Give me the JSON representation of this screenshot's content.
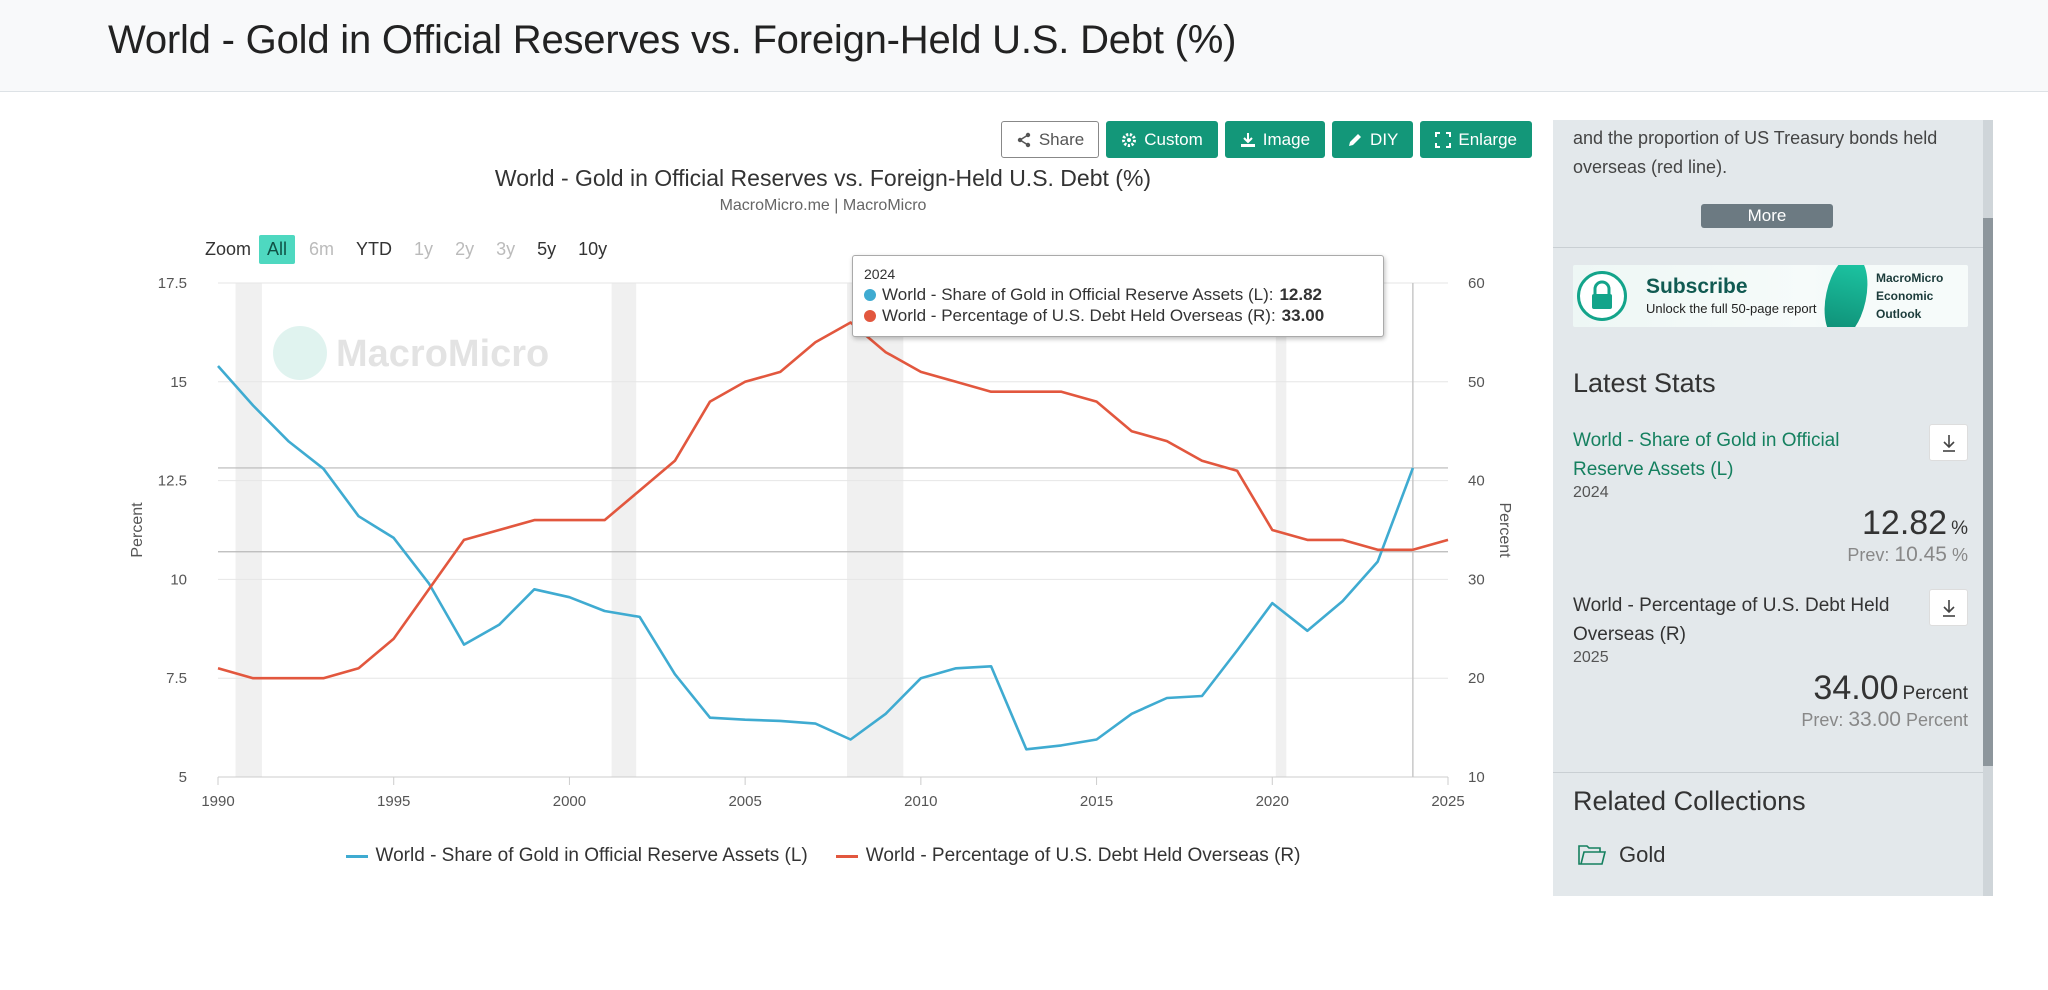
{
  "page": {
    "title": "World - Gold in Official Reserves vs. Foreign-Held U.S. Debt (%)"
  },
  "toolbar": {
    "share": "Share",
    "custom": "Custom",
    "image": "Image",
    "diy": "DIY",
    "enlarge": "Enlarge"
  },
  "zoom": {
    "label": "Zoom",
    "options": [
      "All",
      "6m",
      "YTD",
      "1y",
      "2y",
      "3y",
      "5y",
      "10y"
    ],
    "selected": "All"
  },
  "colors": {
    "gold_series": "#3fabd1",
    "debt_series": "#e2573e",
    "accent": "#139779",
    "recession_band": "#f0f0f0"
  },
  "chart_data": {
    "type": "line",
    "title": "World - Gold in Official Reserves vs. Foreign-Held U.S. Debt (%)",
    "subtitle": "MacroMicro.me | MacroMicro",
    "watermark": "MacroMicro",
    "x_ticks": [
      "1990",
      "1995",
      "2000",
      "2005",
      "2010",
      "2015",
      "2020",
      "2025"
    ],
    "y_left": {
      "label": "Percent",
      "min": 5,
      "max": 17.5,
      "ticks": [
        "5",
        "7.5",
        "10",
        "12.5",
        "15",
        "17.5"
      ]
    },
    "y_right": {
      "label": "Percent",
      "min": 10,
      "max": 60,
      "ticks": [
        "10",
        "20",
        "30",
        "40",
        "50",
        "60"
      ]
    },
    "recession_bands": [
      [
        1990.5,
        1991.25
      ],
      [
        2001.2,
        2001.9
      ],
      [
        2007.9,
        2009.5
      ],
      [
        2020.1,
        2020.4
      ]
    ],
    "reference_lines_left": [
      12.82,
      10.7
    ],
    "crosshair_year": 2024,
    "series": [
      {
        "name": "World - Share of Gold in Official Reserve Assets (L)",
        "axis": "left",
        "x": [
          1990,
          1991,
          1992,
          1993,
          1994,
          1995,
          1996,
          1997,
          1998,
          1999,
          2000,
          2001,
          2002,
          2003,
          2004,
          2005,
          2006,
          2007,
          2008,
          2009,
          2010,
          2011,
          2012,
          2013,
          2014,
          2015,
          2016,
          2017,
          2018,
          2019,
          2020,
          2021,
          2022,
          2023,
          2024
        ],
        "values": [
          15.4,
          14.4,
          13.5,
          12.8,
          11.6,
          11.05,
          9.9,
          8.35,
          8.85,
          9.75,
          9.55,
          9.2,
          9.05,
          7.6,
          6.5,
          6.45,
          6.42,
          6.35,
          5.95,
          6.6,
          7.5,
          7.75,
          7.8,
          5.7,
          5.8,
          5.95,
          6.6,
          7.0,
          7.05,
          8.2,
          9.4,
          8.7,
          9.45,
          10.45,
          12.82
        ]
      },
      {
        "name": "World - Percentage of U.S. Debt Held Overseas (R)",
        "axis": "right",
        "x": [
          1990,
          1991,
          1992,
          1993,
          1994,
          1995,
          1996,
          1997,
          1998,
          1999,
          2000,
          2001,
          2002,
          2003,
          2004,
          2005,
          2006,
          2007,
          2008,
          2009,
          2010,
          2011,
          2012,
          2013,
          2014,
          2015,
          2016,
          2017,
          2018,
          2019,
          2020,
          2021,
          2022,
          2023,
          2024,
          2025
        ],
        "values": [
          21,
          20,
          20,
          20,
          21,
          24,
          29,
          34,
          35,
          36,
          36,
          36,
          39,
          42,
          48,
          50,
          51,
          54,
          56,
          53,
          51,
          50,
          49,
          49,
          49,
          48,
          45,
          44,
          42,
          41,
          35,
          34,
          34,
          33,
          33,
          34
        ]
      }
    ]
  },
  "tooltip": {
    "year": "2024",
    "rows": [
      {
        "label": "World - Share of Gold in Official Reserve Assets (L): ",
        "value": "12.82"
      },
      {
        "label": "World - Percentage of U.S. Debt Held Overseas (R): ",
        "value": "33.00"
      }
    ]
  },
  "legend": {
    "items": [
      "World - Share of Gold in Official Reserve Assets (L)",
      "World - Percentage of U.S. Debt Held Overseas (R)"
    ]
  },
  "sidebar": {
    "description": "and the proportion of US Treasury bonds held overseas (red line).",
    "more": "More",
    "subscribe": {
      "title": "Subscribe",
      "text": "Unlock the full 50-page report",
      "right_line1": "MacroMicro",
      "right_line2": "Economic",
      "right_line3": "Outlook"
    },
    "latest_stats_title": "Latest Stats",
    "stats": [
      {
        "name": "World - Share of Gold in Official Reserve Assets (L)",
        "date": "2024",
        "value": "12.82",
        "unit": "%",
        "prev_label": "Prev:",
        "prev_value": "10.45",
        "prev_unit": "%"
      },
      {
        "name": "World - Percentage of U.S. Debt Held Overseas (R)",
        "date": "2025",
        "value": "34.00",
        "unit": "Percent",
        "prev_label": "Prev:",
        "prev_value": "33.00",
        "prev_unit": "Percent"
      }
    ],
    "related_title": "Related Collections",
    "related": [
      {
        "label": "Gold"
      }
    ]
  }
}
